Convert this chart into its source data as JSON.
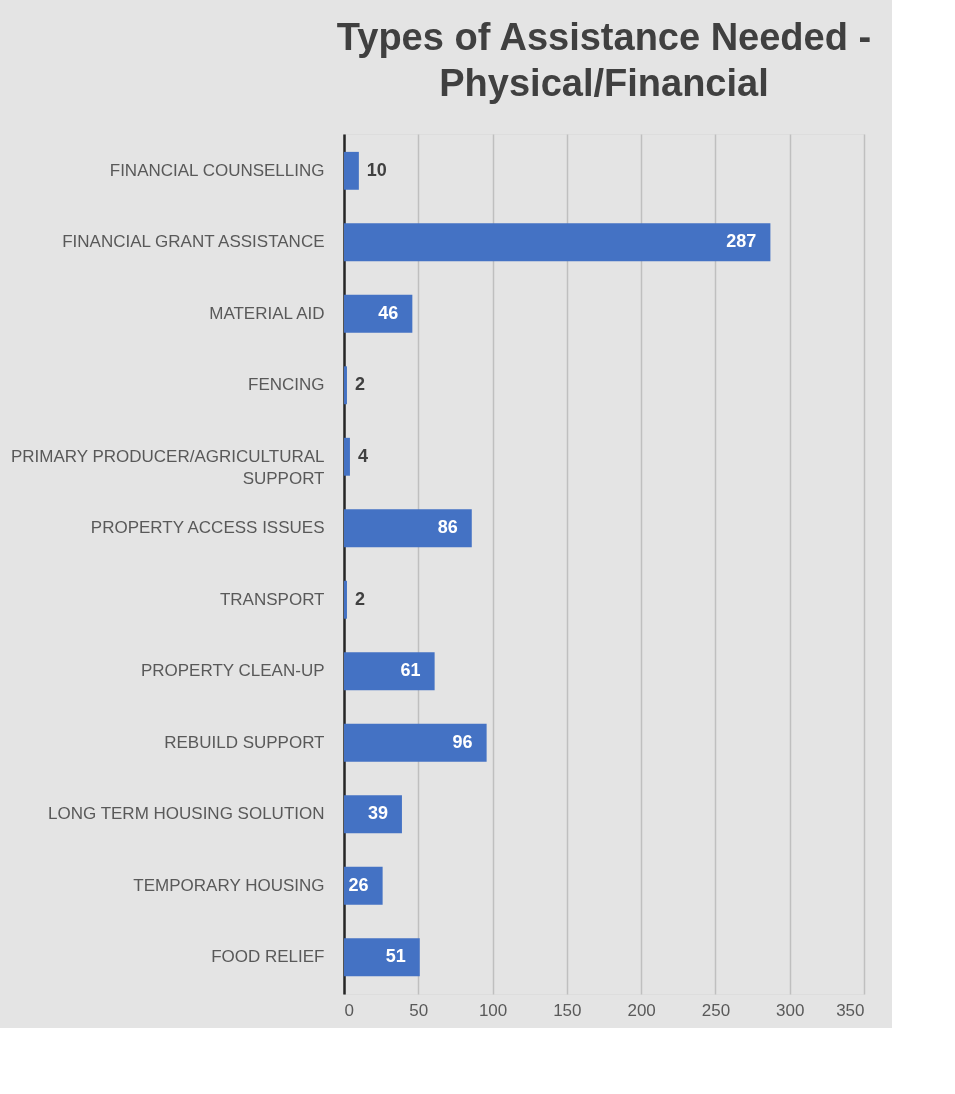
{
  "chart_data": {
    "type": "bar",
    "orientation": "horizontal",
    "title": "Types of Assistance Needed - Physical/Financial",
    "categories": [
      "FINANCIAL COUNSELLING",
      "FINANCIAL GRANT ASSISTANCE",
      "MATERIAL AID",
      "FENCING",
      "PRIMARY PRODUCER/AGRICULTURAL SUPPORT",
      "PROPERTY ACCESS ISSUES",
      "TRANSPORT",
      "PROPERTY CLEAN-UP",
      "REBUILD SUPPORT",
      "LONG TERM HOUSING SOLUTION",
      "TEMPORARY HOUSING",
      "FOOD RELIEF"
    ],
    "values": [
      10,
      287,
      46,
      2,
      4,
      86,
      2,
      61,
      96,
      39,
      26,
      51
    ],
    "color": "#4472c4",
    "xlim": [
      0,
      350
    ],
    "xticks": [
      0,
      50,
      100,
      150,
      200,
      250,
      300,
      350
    ],
    "grid": "x",
    "data_labels": true
  }
}
